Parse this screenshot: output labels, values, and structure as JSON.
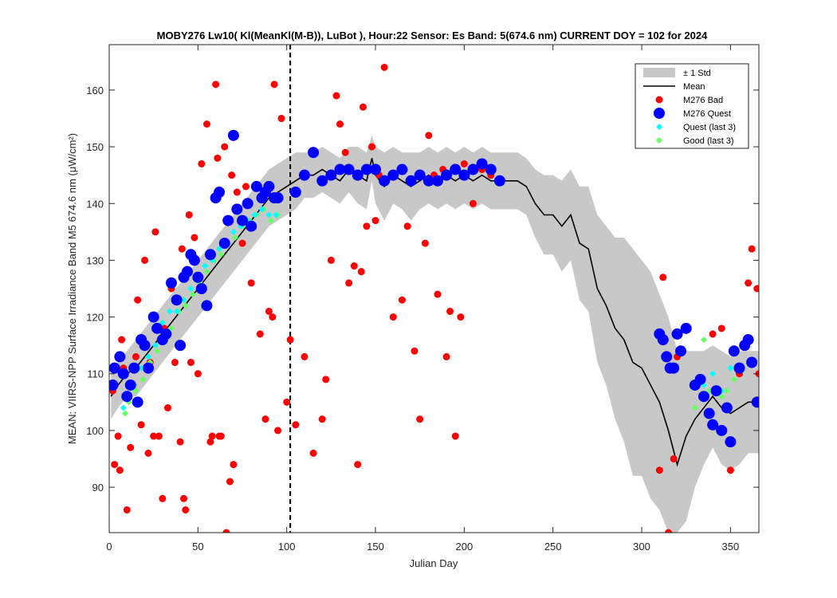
{
  "chart_data": {
    "type": "scatter",
    "title": "MOBY276   Lw10( Kl(MeanKl(M-B)), LuBot ),   Hour:22 Sensor: Es Band: 5(674.6 nm)   CURRENT DOY = 102 for 2024",
    "xlabel": "Julian Day",
    "ylabel": "MEAN: VIIRS-NPP Surface Irradiance Band M5 674.6 nm (μW/cm²)",
    "xlim": [
      0,
      366
    ],
    "ylim": [
      82,
      168
    ],
    "x_ticks": [
      0,
      50,
      100,
      150,
      200,
      250,
      300,
      350
    ],
    "y_ticks": [
      90,
      100,
      110,
      120,
      130,
      140,
      150,
      160
    ],
    "current_doy": 102,
    "grid": false,
    "legend_position": "top-right",
    "legend": [
      "± 1 Std",
      "Mean",
      "M276 Bad",
      "M276 Quest",
      "Quest (last 3)",
      "Good (last 3)"
    ],
    "colors": {
      "std_band": "#c8c8c8",
      "mean": "#000000",
      "bad": "#ff0000",
      "quest": "#0000ff",
      "quest_last3": "#00ffff",
      "good_last3": "#66ff66",
      "current_doy_line": "#000000"
    },
    "mean": {
      "x": [
        1,
        5,
        10,
        15,
        20,
        25,
        30,
        35,
        40,
        45,
        50,
        55,
        60,
        65,
        70,
        75,
        80,
        85,
        90,
        95,
        100,
        105,
        110,
        115,
        120,
        125,
        130,
        135,
        140,
        145,
        148,
        150,
        155,
        160,
        165,
        170,
        175,
        180,
        185,
        190,
        195,
        200,
        205,
        210,
        215,
        220,
        225,
        230,
        235,
        240,
        245,
        250,
        255,
        260,
        265,
        270,
        275,
        280,
        285,
        290,
        295,
        300,
        305,
        310,
        315,
        320,
        325,
        330,
        335,
        340,
        345,
        350,
        355,
        360,
        366
      ],
      "y": [
        106,
        108,
        110,
        111,
        113,
        115,
        117,
        119,
        121,
        123,
        125,
        127,
        129,
        131,
        133,
        135,
        137,
        139,
        141,
        142,
        143,
        144,
        145,
        145,
        146,
        145,
        144,
        146,
        145,
        144,
        148,
        145,
        143,
        145,
        144,
        143,
        144,
        145,
        144,
        145,
        144,
        145,
        144,
        145,
        144,
        144,
        144,
        144,
        143,
        140,
        138,
        138,
        136,
        138,
        133,
        132,
        125,
        122,
        118,
        116,
        112,
        111,
        108,
        105,
        100,
        94,
        99,
        102,
        104,
        106,
        104,
        103,
        104,
        105,
        105
      ]
    },
    "std_upper": [
      110,
      112,
      114,
      116,
      118,
      120,
      122,
      124,
      126,
      128,
      130,
      132,
      134,
      136,
      138,
      140,
      142,
      144,
      146,
      147,
      148,
      149,
      149,
      149,
      150,
      149,
      148,
      150,
      150,
      149,
      152,
      150,
      149,
      150,
      149,
      149,
      149,
      150,
      149,
      150,
      149,
      150,
      149,
      150,
      149,
      149,
      149,
      149,
      148,
      146,
      145,
      145,
      144,
      146,
      143,
      143,
      138,
      136,
      134,
      134,
      132,
      130,
      128,
      124,
      120,
      114,
      114,
      114,
      114,
      115,
      114,
      113,
      114,
      114,
      114
    ],
    "std_lower": [
      102,
      104,
      106,
      106,
      108,
      110,
      112,
      114,
      116,
      118,
      120,
      122,
      124,
      126,
      128,
      130,
      132,
      134,
      136,
      137,
      138,
      139,
      141,
      141,
      142,
      141,
      140,
      142,
      140,
      139,
      144,
      140,
      137,
      140,
      139,
      137,
      139,
      140,
      139,
      140,
      139,
      140,
      139,
      140,
      139,
      139,
      139,
      139,
      138,
      134,
      131,
      131,
      128,
      130,
      123,
      121,
      112,
      108,
      102,
      98,
      92,
      92,
      88,
      86,
      82,
      82,
      84,
      90,
      94,
      97,
      94,
      93,
      94,
      96,
      96
    ],
    "series": [
      {
        "name": "M276 Bad",
        "x": [
          2,
          3,
          5,
          6,
          7,
          8,
          10,
          12,
          15,
          16,
          18,
          20,
          22,
          23,
          25,
          26,
          28,
          30,
          31,
          33,
          35,
          37,
          40,
          41,
          42,
          43,
          45,
          46,
          48,
          50,
          52,
          55,
          57,
          58,
          60,
          61,
          62,
          63,
          65,
          66,
          68,
          69,
          70,
          72,
          75,
          77,
          80,
          82,
          85,
          88,
          90,
          92,
          93,
          95,
          97,
          100,
          102,
          105,
          110,
          115,
          120,
          122,
          125,
          128,
          130,
          133,
          135,
          138,
          140,
          142,
          143,
          145,
          148,
          150,
          152,
          155,
          160,
          165,
          168,
          172,
          175,
          178,
          180,
          183,
          185,
          188,
          190,
          192,
          195,
          198,
          200,
          205,
          210,
          215,
          310,
          312,
          315,
          318,
          320,
          340,
          345,
          350,
          355,
          360,
          362,
          365,
          366
        ],
        "y": [
          107,
          94,
          99,
          93,
          116,
          111,
          86,
          97,
          113,
          123,
          101,
          130,
          96,
          112,
          99,
          135,
          99,
          88,
          118,
          104,
          125,
          112,
          98,
          132,
          88,
          86,
          138,
          112,
          134,
          110,
          147,
          154,
          98,
          99,
          161,
          148,
          99,
          99,
          150,
          82,
          91,
          145,
          94,
          142,
          133,
          143,
          126,
          143,
          117,
          102,
          121,
          120,
          161,
          100,
          155,
          105,
          116,
          101,
          113,
          96,
          102,
          109,
          130,
          159,
          154,
          149,
          126,
          129,
          94,
          128,
          157,
          136,
          150,
          137,
          145,
          164,
          120,
          123,
          136,
          114,
          102,
          133,
          152,
          145,
          124,
          146,
          113,
          121,
          99,
          120,
          147,
          140,
          146,
          145,
          93,
          127,
          82,
          95,
          113,
          117,
          118,
          93,
          110,
          126,
          132,
          125,
          110
        ]
      },
      {
        "name": "M276 Quest",
        "x": [
          2,
          3,
          6,
          8,
          10,
          12,
          14,
          16,
          18,
          20,
          22,
          25,
          27,
          30,
          32,
          35,
          38,
          40,
          42,
          44,
          46,
          48,
          50,
          52,
          55,
          57,
          60,
          62,
          65,
          67,
          70,
          72,
          75,
          78,
          80,
          83,
          86,
          88,
          90,
          93,
          95,
          105,
          110,
          115,
          120,
          125,
          130,
          135,
          140,
          145,
          150,
          155,
          160,
          165,
          170,
          175,
          180,
          185,
          190,
          195,
          200,
          205,
          210,
          215,
          220,
          310,
          312,
          314,
          316,
          318,
          320,
          322,
          325,
          330,
          333,
          335,
          338,
          340,
          342,
          345,
          348,
          350,
          352,
          355,
          358,
          360,
          362,
          365
        ],
        "y": [
          108,
          111,
          113,
          110,
          106,
          108,
          111,
          105,
          116,
          115,
          111,
          120,
          118,
          116,
          117,
          126,
          123,
          115,
          127,
          128,
          131,
          130,
          127,
          125,
          122,
          131,
          141,
          142,
          133,
          137,
          152,
          139,
          137,
          140,
          136,
          143,
          141,
          142,
          143,
          141,
          141,
          142,
          145,
          149,
          144,
          145,
          146,
          146,
          145,
          146,
          146,
          144,
          145,
          146,
          144,
          145,
          144,
          144,
          145,
          146,
          145,
          146,
          147,
          146,
          144,
          117,
          116,
          113,
          111,
          111,
          117,
          114,
          118,
          108,
          109,
          106,
          103,
          101,
          107,
          100,
          104,
          98,
          114,
          111,
          115,
          116,
          112,
          105
        ]
      },
      {
        "name": "Quest (last 3)",
        "x": [
          8,
          10,
          14,
          18,
          22,
          26,
          30,
          34,
          38,
          42,
          46,
          50,
          54,
          58,
          62,
          66,
          70,
          74,
          78,
          82,
          86,
          90,
          94,
          335,
          340,
          345,
          350
        ],
        "y": [
          104,
          106,
          108,
          111,
          113,
          115,
          119,
          121,
          121,
          123,
          125,
          127,
          129,
          130,
          132,
          133,
          135,
          136,
          137,
          138,
          139,
          138,
          138,
          108,
          110,
          107,
          111
        ]
      },
      {
        "name": "Good (last 3)",
        "x": [
          9,
          11,
          15,
          19,
          23,
          27,
          31,
          35,
          39,
          43,
          47,
          51,
          55,
          59,
          63,
          67,
          71,
          75,
          79,
          83,
          87,
          91,
          95,
          330,
          335,
          338,
          345,
          348,
          352
        ],
        "y": [
          103,
          105,
          107,
          109,
          112,
          114,
          116,
          118,
          121,
          122,
          124,
          126,
          128,
          130,
          131,
          133,
          134,
          136,
          137,
          138,
          139,
          137,
          138,
          104,
          116,
          107,
          106,
          107,
          109
        ]
      }
    ]
  }
}
